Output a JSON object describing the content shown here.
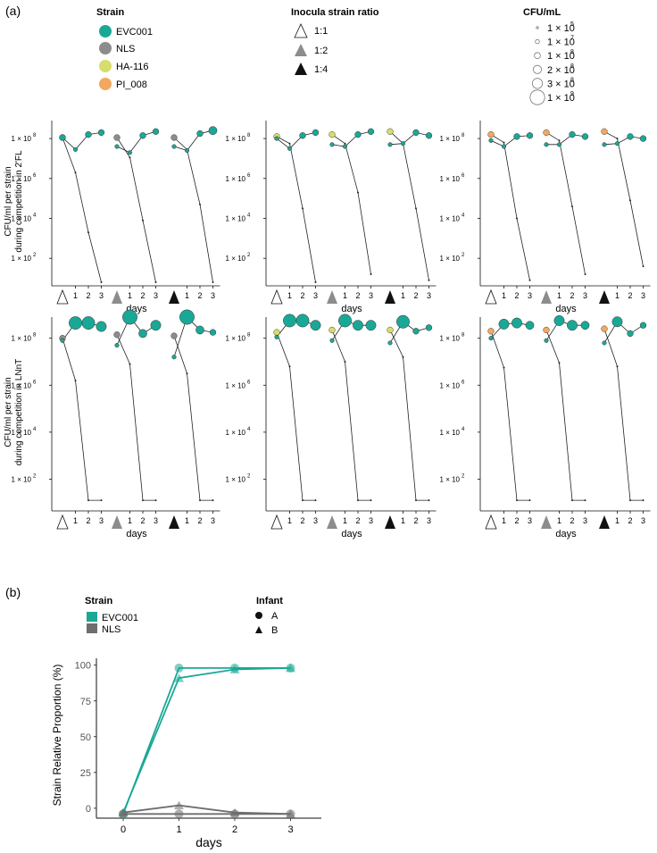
{
  "panel_a": {
    "label": "(a)",
    "legend_strain": {
      "title": "Strain",
      "items": [
        {
          "name": "EVC001",
          "color": "#1aa896"
        },
        {
          "name": "NLS",
          "color": "#8c8c8c"
        },
        {
          "name": "HA-116",
          "color": "#d6dd6a"
        },
        {
          "name": "PI_008",
          "color": "#f2a860"
        }
      ]
    },
    "legend_ratio": {
      "title": "Inocula strain ratio",
      "items": [
        {
          "name": "1:1",
          "fill": "#ffffff"
        },
        {
          "name": "1:2",
          "fill": "#8c8c8c"
        },
        {
          "name": "1:4",
          "fill": "#111111"
        }
      ]
    },
    "legend_cfu": {
      "title": "CFU/mL",
      "items": [
        {
          "mantissa": "1",
          "exponent": "5",
          "size": 1
        },
        {
          "mantissa": "1",
          "exponent": "7",
          "size": 2
        },
        {
          "mantissa": "1",
          "exponent": "8",
          "size": 3
        },
        {
          "mantissa": "2",
          "exponent": "8",
          "size": 4
        },
        {
          "mantissa": "3",
          "exponent": "8",
          "size": 5
        },
        {
          "mantissa": "1",
          "exponent": "9",
          "size": 7
        }
      ]
    },
    "row_ylabels": [
      [
        "CFU/ml per strain",
        "during competition in 2'FL"
      ],
      [
        "CFU/ml per strain",
        "during competition in LNnT"
      ]
    ],
    "x_label": "days",
    "x_ticks": [
      "1",
      "2",
      "3"
    ],
    "ratio_markers": [
      "1:1",
      "1:2",
      "1:4"
    ],
    "y_ticks": [
      {
        "mantissa": "1 × 10",
        "exponent": "8",
        "log": 8
      },
      {
        "mantissa": "1 × 10",
        "exponent": "6",
        "log": 6
      },
      {
        "mantissa": "1 × 10",
        "exponent": "4",
        "log": 4
      },
      {
        "mantissa": "1 × 10",
        "exponent": "2",
        "log": 2
      }
    ]
  },
  "panel_b": {
    "label": "(b)",
    "legend_strain": {
      "title": "Strain",
      "items": [
        {
          "name": "EVC001",
          "color": "#1aa896"
        },
        {
          "name": "NLS",
          "color": "#6e6e70"
        }
      ]
    },
    "legend_infant": {
      "title": "Infant",
      "items": [
        {
          "name": "A",
          "shape": "circle"
        },
        {
          "name": "B",
          "shape": "triangle"
        }
      ]
    }
  },
  "chart_data": [
    {
      "type": "scatter",
      "title": "(a) CFU/ml per strain during competition in 2'FL and LNnT",
      "xlabel": "days",
      "ylabel": "CFU/ml per strain",
      "x": [
        0,
        1,
        2,
        3
      ],
      "y_scale": "log10",
      "ylim_log10": [
        0.8,
        8.9
      ],
      "competitor_strains": [
        "NLS",
        "HA-116",
        "PI_008"
      ],
      "ratios": [
        "1:1",
        "1:2",
        "1:4"
      ],
      "media": [
        "2'FL",
        "LNnT"
      ],
      "panels": [
        {
          "medium": "2'FL",
          "competitor": "NLS",
          "ratio": "1:1",
          "evc001_log": [
            8.05,
            7.45,
            8.2,
            8.3
          ],
          "competitor_log": [
            8.05,
            6.3,
            3.3,
            0.8
          ],
          "sizes": [
            3,
            2,
            3,
            3
          ],
          "competitor_size": 3
        },
        {
          "medium": "2'FL",
          "competitor": "NLS",
          "ratio": "1:2",
          "evc001_log": [
            7.6,
            7.3,
            8.15,
            8.35
          ],
          "competitor_log": [
            8.05,
            7.05,
            3.9,
            0.8
          ],
          "sizes": [
            2,
            2,
            3,
            3
          ],
          "competitor_size": 3
        },
        {
          "medium": "2'FL",
          "competitor": "NLS",
          "ratio": "1:4",
          "evc001_log": [
            7.6,
            7.4,
            8.25,
            8.4
          ],
          "competitor_log": [
            8.05,
            7.45,
            4.7,
            0.8
          ],
          "sizes": [
            2,
            2,
            3,
            4
          ],
          "competitor_size": 3
        },
        {
          "medium": "2'FL",
          "competitor": "HA-116",
          "ratio": "1:1",
          "evc001_log": [
            8.0,
            7.5,
            8.15,
            8.3
          ],
          "competitor_log": [
            8.1,
            7.75,
            4.5,
            0.8
          ],
          "sizes": [
            2,
            2,
            3,
            3
          ],
          "competitor_size": 3
        },
        {
          "medium": "2'FL",
          "competitor": "HA-116",
          "ratio": "1:2",
          "evc001_log": [
            7.7,
            7.6,
            8.2,
            8.35
          ],
          "competitor_log": [
            8.2,
            7.75,
            5.3,
            1.2
          ],
          "sizes": [
            2,
            2,
            3,
            3
          ],
          "competitor_size": 3
        },
        {
          "medium": "2'FL",
          "competitor": "HA-116",
          "ratio": "1:4",
          "evc001_log": [
            7.7,
            7.75,
            8.3,
            8.15
          ],
          "competitor_log": [
            8.35,
            7.75,
            4.5,
            0.9
          ],
          "sizes": [
            2,
            2,
            3,
            3
          ],
          "competitor_size": 3
        },
        {
          "medium": "2'FL",
          "competitor": "PI_008",
          "ratio": "1:1",
          "evc001_log": [
            7.9,
            7.6,
            8.1,
            8.15
          ],
          "competitor_log": [
            8.2,
            7.8,
            4.0,
            0.9
          ],
          "sizes": [
            2,
            2,
            3,
            3
          ],
          "competitor_size": 3
        },
        {
          "medium": "2'FL",
          "competitor": "PI_008",
          "ratio": "1:2",
          "evc001_log": [
            7.7,
            7.7,
            8.2,
            8.1
          ],
          "competitor_log": [
            8.3,
            7.9,
            4.6,
            1.2
          ],
          "sizes": [
            2,
            2,
            3,
            3
          ],
          "competitor_size": 3
        },
        {
          "medium": "2'FL",
          "competitor": "PI_008",
          "ratio": "1:4",
          "evc001_log": [
            7.7,
            7.75,
            8.1,
            8.0
          ],
          "competitor_log": [
            8.35,
            8.0,
            4.9,
            1.6
          ],
          "sizes": [
            2,
            2,
            3,
            3
          ],
          "competitor_size": 3
        },
        {
          "medium": "LNnT",
          "competitor": "NLS",
          "ratio": "1:1",
          "evc001_log": [
            7.9,
            8.65,
            8.65,
            8.5
          ],
          "competitor_log": [
            8.0,
            6.2,
            1.1,
            1.1
          ],
          "sizes": [
            2,
            6,
            6,
            5
          ],
          "competitor_size": 3
        },
        {
          "medium": "LNnT",
          "competitor": "NLS",
          "ratio": "1:2",
          "evc001_log": [
            7.7,
            8.9,
            8.2,
            8.55
          ],
          "competitor_log": [
            8.15,
            6.9,
            1.1,
            1.1
          ],
          "sizes": [
            2,
            7,
            4,
            5
          ],
          "competitor_size": 3
        },
        {
          "medium": "LNnT",
          "competitor": "NLS",
          "ratio": "1:4",
          "evc001_log": [
            7.2,
            8.9,
            8.35,
            8.25
          ],
          "competitor_log": [
            8.1,
            6.5,
            1.1,
            1.1
          ],
          "sizes": [
            2,
            7,
            4,
            3
          ],
          "competitor_size": 3
        },
        {
          "medium": "LNnT",
          "competitor": "HA-116",
          "ratio": "1:1",
          "evc001_log": [
            8.05,
            8.75,
            8.75,
            8.55
          ],
          "competitor_log": [
            8.25,
            6.8,
            1.1,
            1.1
          ],
          "sizes": [
            2,
            6,
            6,
            5
          ],
          "competitor_size": 3
        },
        {
          "medium": "LNnT",
          "competitor": "HA-116",
          "ratio": "1:2",
          "evc001_log": [
            7.9,
            8.75,
            8.55,
            8.55
          ],
          "competitor_log": [
            8.35,
            7.0,
            1.1,
            1.1
          ],
          "sizes": [
            2,
            6,
            5,
            5
          ],
          "competitor_size": 3
        },
        {
          "medium": "LNnT",
          "competitor": "HA-116",
          "ratio": "1:4",
          "evc001_log": [
            7.8,
            8.7,
            8.3,
            8.45
          ],
          "competitor_log": [
            8.35,
            7.2,
            1.1,
            1.1
          ],
          "sizes": [
            2,
            6,
            3,
            3
          ],
          "competitor_size": 3
        },
        {
          "medium": "LNnT",
          "competitor": "PI_008",
          "ratio": "1:1",
          "evc001_log": [
            8.0,
            8.6,
            8.65,
            8.55
          ],
          "competitor_log": [
            8.3,
            6.75,
            1.1,
            1.1
          ],
          "sizes": [
            2,
            5,
            5,
            4
          ],
          "competitor_size": 3
        },
        {
          "medium": "LNnT",
          "competitor": "PI_008",
          "ratio": "1:2",
          "evc001_log": [
            7.9,
            8.75,
            8.55,
            8.55
          ],
          "competitor_log": [
            8.35,
            6.95,
            1.1,
            1.1
          ],
          "sizes": [
            2,
            5,
            5,
            4
          ],
          "competitor_size": 3
        },
        {
          "medium": "LNnT",
          "competitor": "PI_008",
          "ratio": "1:4",
          "evc001_log": [
            7.8,
            8.7,
            8.2,
            8.55
          ],
          "competitor_log": [
            8.4,
            6.8,
            1.1,
            1.1
          ],
          "sizes": [
            2,
            5,
            3,
            3
          ],
          "competitor_size": 3
        }
      ]
    },
    {
      "type": "line",
      "title": "",
      "xlabel": "days",
      "ylabel": "Strain Relative Proportion (%)",
      "x": [
        0,
        1,
        2,
        3
      ],
      "x_ticks": [
        "0",
        "1",
        "2",
        "3"
      ],
      "y_ticks": [
        "0",
        "25",
        "50",
        "75",
        "100"
      ],
      "ylim": [
        -6,
        102
      ],
      "series": [
        {
          "name": "EVC001",
          "infant": "A",
          "shape": "circle",
          "color": "#1aa896",
          "values": [
            -4,
            98,
            98,
            98
          ]
        },
        {
          "name": "EVC001",
          "infant": "B",
          "shape": "triangle",
          "color": "#1aa896",
          "values": [
            -3,
            91,
            97,
            98
          ]
        },
        {
          "name": "NLS",
          "infant": "A",
          "shape": "circle",
          "color": "#6e6e70",
          "values": [
            -4,
            -4,
            -4,
            -4
          ]
        },
        {
          "name": "NLS",
          "infant": "B",
          "shape": "triangle",
          "color": "#6e6e70",
          "values": [
            -3,
            2,
            -3,
            -4
          ]
        }
      ]
    }
  ]
}
